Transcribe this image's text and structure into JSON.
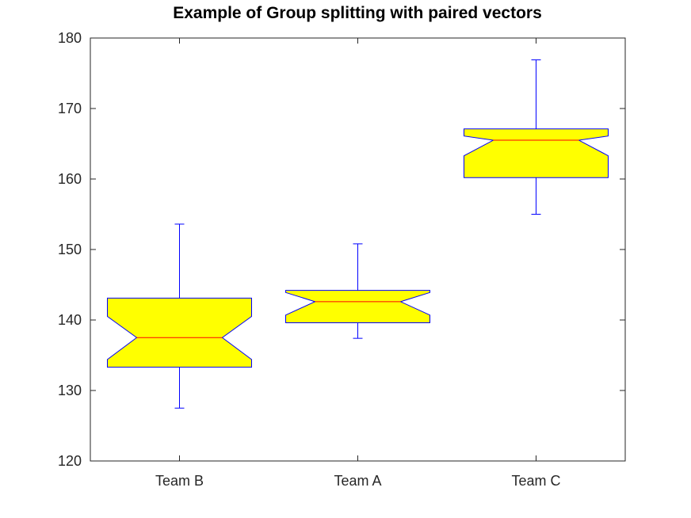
{
  "chart_data": {
    "type": "boxplot",
    "title": "Example of Group splitting with paired vectors",
    "xlabel": "",
    "ylabel": "",
    "ylim": [
      120,
      180
    ],
    "yticks": [
      120,
      130,
      140,
      150,
      160,
      170,
      180
    ],
    "categories": [
      "Team B",
      "Team A",
      "Team C"
    ],
    "notched": true,
    "boxes": [
      {
        "category": "Team B",
        "whisker_low": 127.5,
        "q1": 133.3,
        "notch_low": 134.4,
        "median": 137.5,
        "notch_high": 140.5,
        "q3": 143.1,
        "whisker_high": 153.6
      },
      {
        "category": "Team A",
        "whisker_low": 137.4,
        "q1": 139.6,
        "notch_low": 140.7,
        "median": 142.6,
        "notch_high": 143.9,
        "q3": 144.2,
        "whisker_high": 150.8
      },
      {
        "category": "Team C",
        "whisker_low": 155.0,
        "q1": 160.2,
        "notch_low": 163.3,
        "median": 165.5,
        "notch_high": 166.1,
        "q3": 167.1,
        "whisker_high": 176.9
      }
    ],
    "colors": {
      "box_fill": "#ffff00",
      "box_edge": "#0000ff",
      "whisker": "#0000ff",
      "median": "#ff0000",
      "axes": "#262626"
    },
    "grid": false,
    "box_frame": true
  }
}
